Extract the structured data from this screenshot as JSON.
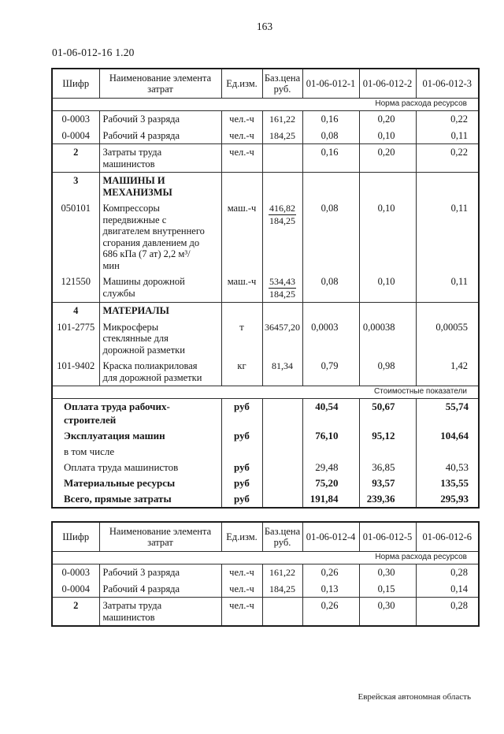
{
  "page": {
    "number": "163",
    "code": "01-06-012-16 1.20",
    "footer": "Еврейская автономная область"
  },
  "tables": [
    {
      "headers": {
        "code": "Шифр",
        "name": "Наименование элемента затрат",
        "unit": "Ед.изм.",
        "price": "Баз.цена руб.",
        "cols": [
          "01-06-012-1",
          "01-06-012-2",
          "01-06-012-3"
        ]
      },
      "norm_band": "Норма расхода ресурсов",
      "rows": [
        {
          "code": "0-0003",
          "name": "Рабочий 3 разряда",
          "unit": "чел.-ч",
          "price": "161,22",
          "values": [
            "0,16",
            "0,20",
            "0,22"
          ],
          "group": true
        },
        {
          "code": "0-0004",
          "name": "Рабочий 4 разряда",
          "unit": "чел.-ч",
          "price": "184,25",
          "values": [
            "0,08",
            "0,10",
            "0,11"
          ]
        },
        {
          "code": "2",
          "code_bold": true,
          "name": "Затраты труда машинистов",
          "unit": "чел.-ч",
          "price": "",
          "values": [
            "0,16",
            "0,20",
            "0,22"
          ],
          "group": true
        },
        {
          "code": "3",
          "code_bold": true,
          "name": "МАШИНЫ И МЕХАНИЗМЫ",
          "name_bold": true,
          "unit": "",
          "price": "",
          "values": [
            "",
            "",
            ""
          ],
          "group": true
        },
        {
          "code": "050101",
          "name": "Компрессоры передвижные с двигателем внутреннего сгорания давлением до 686 кПа (7 ат) 2,2 м³/мин",
          "unit": "маш.-ч",
          "price_frac": [
            "416,82",
            "184,25"
          ],
          "values": [
            "0,08",
            "0,10",
            "0,11"
          ]
        },
        {
          "code": "121550",
          "name": "Машины дорожной службы",
          "unit": "маш.-ч",
          "price_frac": [
            "534,43",
            "184,25"
          ],
          "values": [
            "0,08",
            "0,10",
            "0,11"
          ]
        },
        {
          "code": "4",
          "code_bold": true,
          "name": "МАТЕРИАЛЫ",
          "name_bold": true,
          "unit": "",
          "price": "",
          "values": [
            "",
            "",
            ""
          ],
          "group": true
        },
        {
          "code": "101-2775",
          "name": "Микросферы стеклянные для дорожной разметки",
          "unit": "т",
          "price": "36457,20",
          "values": [
            "0,0003",
            "0,00038",
            "0,00055"
          ]
        },
        {
          "code": "101-9402",
          "name": "Краска полиакриловая для дорожной разметки",
          "unit": "кг",
          "price": "81,34",
          "values": [
            "0,79",
            "0,98",
            "1,42"
          ]
        }
      ],
      "cost_band": "Стоимостные показатели",
      "cost_rows": [
        {
          "label": "Оплата труда рабочих-строителей",
          "bold": true,
          "unit": "руб",
          "values": [
            "40,54",
            "50,67",
            "55,74"
          ]
        },
        {
          "label": "Эксплуатация машин",
          "bold": true,
          "unit": "руб",
          "values": [
            "76,10",
            "95,12",
            "104,64"
          ]
        },
        {
          "label": "в том числе",
          "unit": "",
          "values": [
            "",
            "",
            ""
          ]
        },
        {
          "label": "Оплата труда машинистов",
          "unit": "руб",
          "values": [
            "29,48",
            "36,85",
            "40,53"
          ]
        },
        {
          "label": "Материальные ресурсы",
          "bold": true,
          "unit": "руб",
          "values": [
            "75,20",
            "93,57",
            "135,55"
          ]
        },
        {
          "label": "Всего, прямые затраты",
          "bold": true,
          "unit": "руб",
          "values": [
            "191,84",
            "239,36",
            "295,93"
          ]
        }
      ]
    },
    {
      "headers": {
        "code": "Шифр",
        "name": "Наименование элемента затрат",
        "unit": "Ед.изм.",
        "price": "Баз.цена руб.",
        "cols": [
          "01-06-012-4",
          "01-06-012-5",
          "01-06-012-6"
        ]
      },
      "norm_band": "Норма расхода ресурсов",
      "rows": [
        {
          "code": "0-0003",
          "name": "Рабочий 3 разряда",
          "unit": "чел.-ч",
          "price": "161,22",
          "values": [
            "0,26",
            "0,30",
            "0,28"
          ],
          "group": true
        },
        {
          "code": "0-0004",
          "name": "Рабочий 4 разряда",
          "unit": "чел.-ч",
          "price": "184,25",
          "values": [
            "0,13",
            "0,15",
            "0,14"
          ]
        },
        {
          "code": "2",
          "code_bold": true,
          "name": "Затраты труда машинистов",
          "unit": "чел.-ч",
          "price": "",
          "values": [
            "0,26",
            "0,30",
            "0,28"
          ],
          "group": true
        }
      ]
    }
  ]
}
